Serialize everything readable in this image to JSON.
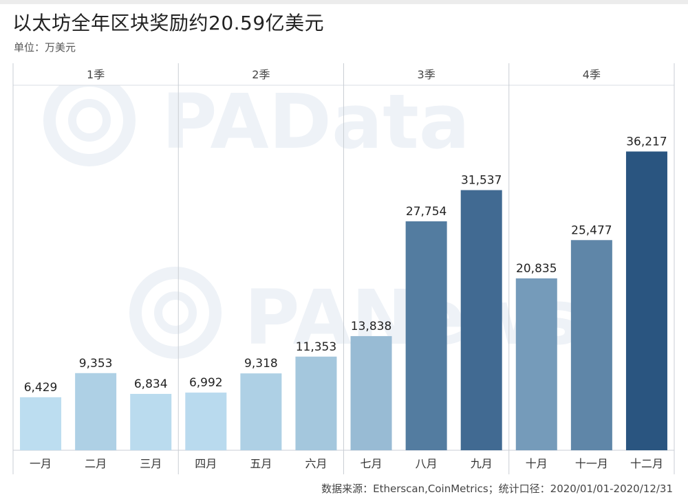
{
  "title": "以太坊全年区块奖励约20.59亿美元",
  "unit": "单位：万美元",
  "source": "数据来源：Etherscan,CoinMetrics；统计口径：2020/01/01-2020/12/31",
  "watermarks": [
    "PAData",
    "PANews"
  ],
  "chart_data": {
    "type": "bar",
    "title": "以太坊全年区块奖励约20.59亿美元",
    "ylabel": "单位：万美元",
    "groups": [
      {
        "label": "1季",
        "categories": [
          "一月",
          "二月",
          "三月"
        ]
      },
      {
        "label": "2季",
        "categories": [
          "四月",
          "五月",
          "六月"
        ]
      },
      {
        "label": "3季",
        "categories": [
          "七月",
          "八月",
          "九月"
        ]
      },
      {
        "label": "4季",
        "categories": [
          "十月",
          "十一月",
          "十二月"
        ]
      }
    ],
    "categories": [
      "一月",
      "二月",
      "三月",
      "四月",
      "五月",
      "六月",
      "七月",
      "八月",
      "九月",
      "十月",
      "十一月",
      "十二月"
    ],
    "values": [
      6429,
      9353,
      6834,
      6992,
      9318,
      11353,
      13838,
      27754,
      31537,
      20835,
      25477,
      36217
    ],
    "value_labels": [
      "6,429",
      "9,353",
      "6,834",
      "6,992",
      "9,318",
      "11,353",
      "13,838",
      "27,754",
      "31,537",
      "20,835",
      "25,477",
      "36,217"
    ],
    "ylim": [
      0,
      40000
    ],
    "grid": false,
    "color_scale": [
      "#bcddf0",
      "#2a5580"
    ]
  }
}
